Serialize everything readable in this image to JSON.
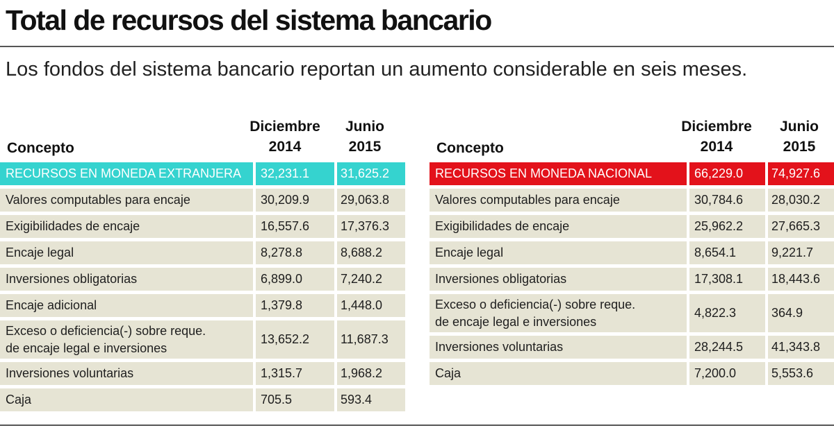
{
  "title": "Total de recursos del sistema bancario",
  "subtitle": "Los fondos del sistema bancario reportan un aumento considerable en seis meses.",
  "colors": {
    "foreign_highlight": "#35d3cf",
    "national_highlight": "#e3121b",
    "row_background": "#e6e4d4"
  },
  "tables": [
    {
      "headers": {
        "concept": "Concepto",
        "dic": "Diciembre\n2014",
        "jun": "Junio\n2015"
      },
      "rows": [
        {
          "name": "RECURSOS EN MONEDA EXTRANJERA",
          "dic": "32,231.1",
          "jun": "31,625.2",
          "highlight": true
        },
        {
          "name": "Valores computables para encaje",
          "dic": "30,209.9",
          "jun": "29,063.8"
        },
        {
          "name": "Exigibilidades de encaje",
          "dic": "16,557.6",
          "jun": "17,376.3"
        },
        {
          "name": "Encaje legal",
          "dic": "8,278.8",
          "jun": "8,688.2"
        },
        {
          "name": "Inversiones obligatorias",
          "dic": "6,899.0",
          "jun": "7,240.2"
        },
        {
          "name": "Encaje adicional",
          "dic": "1,379.8",
          "jun": "1,448.0"
        },
        {
          "name": "Exceso o deficiencia(-) sobre reque.\nde encaje legal e inversiones",
          "dic": "13,652.2",
          "jun": "11,687.3",
          "tall": true
        },
        {
          "name": "Inversiones voluntarias",
          "dic": "1,315.7",
          "jun": "1,968.2"
        },
        {
          "name": "Caja",
          "dic": "705.5",
          "jun": "593.4"
        }
      ]
    },
    {
      "headers": {
        "concept": "Concepto",
        "dic": "Diciembre\n2014",
        "jun": "Junio\n2015"
      },
      "rows": [
        {
          "name": "RECURSOS EN MONEDA NACIONAL",
          "dic": "66,229.0",
          "jun": "74,927.6",
          "highlight": true
        },
        {
          "name": "Valores computables para encaje",
          "dic": "30,784.6",
          "jun": "28,030.2"
        },
        {
          "name": "Exigibilidades de encaje",
          "dic": "25,962.2",
          "jun": "27,665.3"
        },
        {
          "name": "Encaje legal",
          "dic": "8,654.1",
          "jun": "9,221.7"
        },
        {
          "name": "Inversiones obligatorias",
          "dic": "17,308.1",
          "jun": "18,443.6"
        },
        {
          "name": "Exceso o deficiencia(-) sobre reque.\nde encaje legal e inversiones",
          "dic": "4,822.3",
          "jun": "364.9",
          "tall": true
        },
        {
          "name": "Inversiones voluntarias",
          "dic": "28,244.5",
          "jun": "41,343.8"
        },
        {
          "name": "Caja",
          "dic": "7,200.0",
          "jun": "5,553.6"
        }
      ]
    }
  ]
}
